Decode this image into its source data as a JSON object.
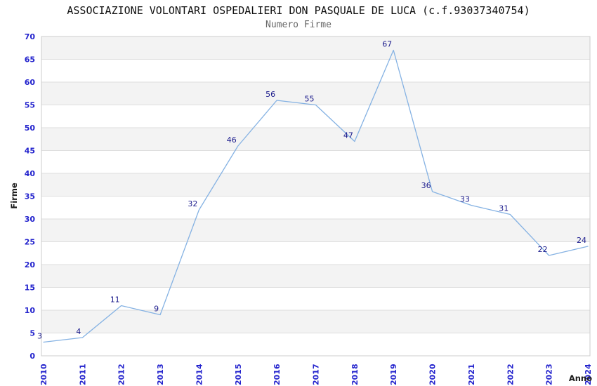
{
  "window": {
    "background": "#ffffff"
  },
  "chart_data": {
    "type": "line",
    "title": "ASSOCIAZIONE VOLONTARI OSPEDALIERI DON PASQUALE DE LUCA (c.f.93037340754)",
    "subtitle": "Numero Firme",
    "xlabel": "Anno",
    "ylabel": "Firme",
    "categories": [
      "2010",
      "2011",
      "2012",
      "2013",
      "2014",
      "2015",
      "2016",
      "2017",
      "2018",
      "2019",
      "2020",
      "2021",
      "2022",
      "2023",
      "2024"
    ],
    "values": [
      3,
      4,
      11,
      9,
      32,
      46,
      56,
      55,
      47,
      67,
      36,
      33,
      31,
      22,
      24
    ],
    "ylim": [
      0,
      70
    ],
    "ytick_step": 5,
    "yticks": [
      0,
      5,
      10,
      15,
      20,
      25,
      30,
      35,
      40,
      45,
      50,
      55,
      60,
      65,
      70
    ],
    "grid": true,
    "legend": "none",
    "point_labels": true,
    "x_tick_rotation": -90,
    "colors": {
      "line": "#85b2e3",
      "tick_labels": "#2323cd",
      "point_labels": "#1a1a8c",
      "band": "#f3f3f3",
      "band_alt": "#ffffff",
      "grid": "#dedede",
      "border": "#cccccc",
      "title": "#111111",
      "subtitle": "#666666",
      "axis_titles": "#1a1a1a"
    }
  }
}
